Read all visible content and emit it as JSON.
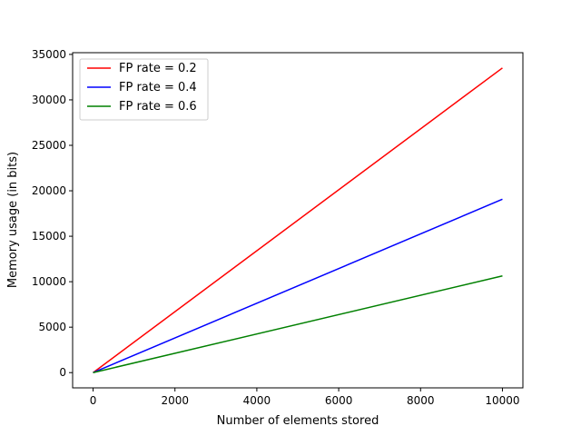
{
  "chart_data": {
    "type": "line",
    "title": "",
    "xlabel": "Number of elements stored",
    "ylabel": "Memory usage (in bits)",
    "xlim": [
      -500,
      10500
    ],
    "ylim": [
      -1676,
      35190
    ],
    "xticks": [
      0,
      2000,
      4000,
      6000,
      8000,
      10000
    ],
    "yticks": [
      0,
      5000,
      10000,
      15000,
      20000,
      25000,
      30000,
      35000
    ],
    "grid": false,
    "legend_position": "top-left",
    "series": [
      {
        "name": "FP rate = 0.2",
        "color": "#ff0000",
        "x": [
          0,
          10000
        ],
        "y": [
          0,
          33513
        ]
      },
      {
        "name": "FP rate = 0.4",
        "color": "#0000ff",
        "x": [
          0,
          10000
        ],
        "y": [
          0,
          19073
        ]
      },
      {
        "name": "FP rate = 0.6",
        "color": "#008000",
        "x": [
          0,
          10000
        ],
        "y": [
          0,
          10636
        ]
      }
    ]
  }
}
